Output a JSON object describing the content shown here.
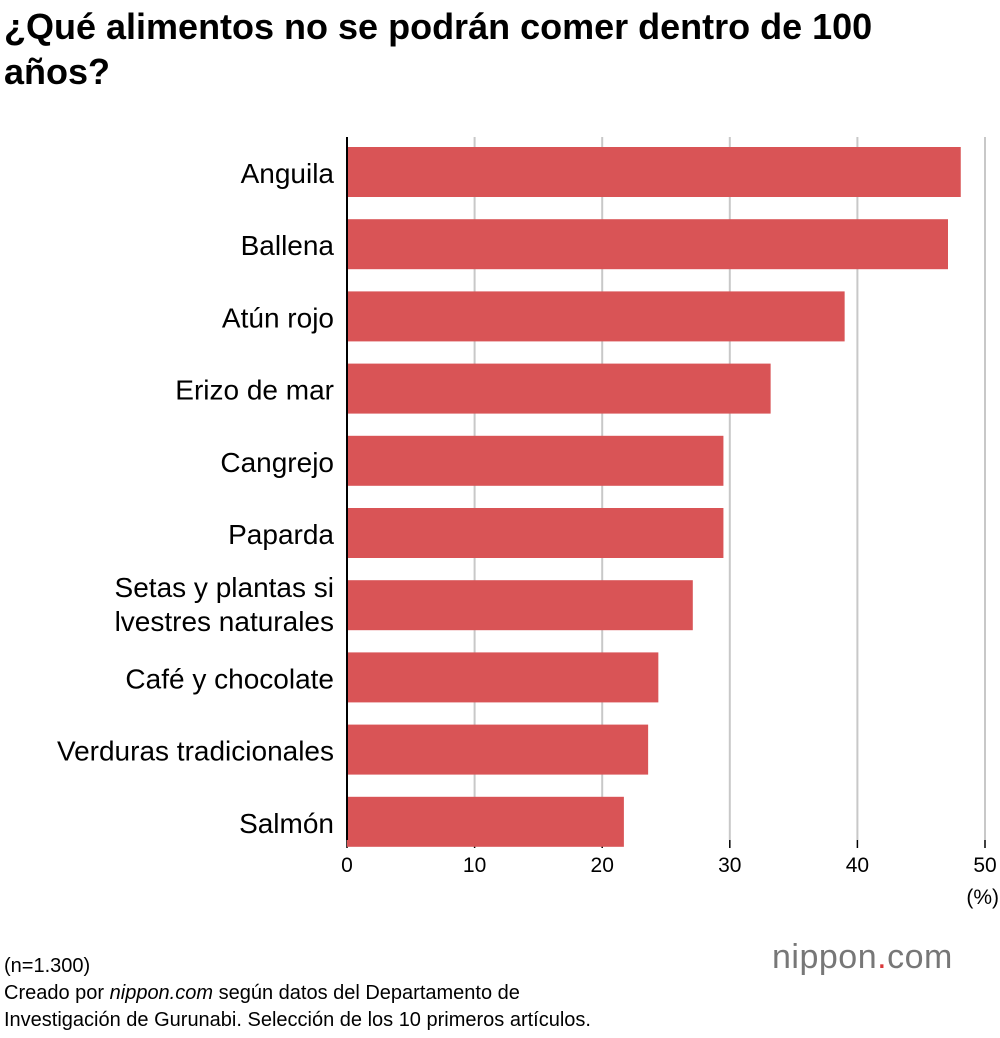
{
  "chart_data": {
    "type": "bar",
    "orientation": "horizontal",
    "title": "¿Qué alimentos no se podrán comer dentro de 100 años?",
    "categories": [
      "Anguila",
      "Ballena",
      "Atún rojo",
      "Erizo de mar",
      "Cangrejo",
      "Paparda",
      "Setas y plantas si|lvestres naturales",
      "Café y chocolate",
      "Verduras tradicionales",
      "Salmón"
    ],
    "values": [
      48.1,
      47.1,
      39.0,
      33.2,
      29.5,
      29.5,
      27.1,
      24.4,
      23.6,
      21.7
    ],
    "xlim": [
      0,
      50
    ],
    "xticks": [
      "0",
      "10",
      "20",
      "30",
      "40",
      "50"
    ],
    "xunit": "(%)",
    "grid": true,
    "bar_color": "#d95456"
  },
  "footer": {
    "n": "(n=1.300)",
    "line1_pre": "Creado por ",
    "line1_site": "nippon.com",
    "line1_post": " según datos del Departamento de",
    "line2": "Investigación de Gurunabi. Selección de los 10 primeros artículos."
  },
  "logo": {
    "name": "nippon",
    "dot": ".",
    "tld": "com"
  }
}
